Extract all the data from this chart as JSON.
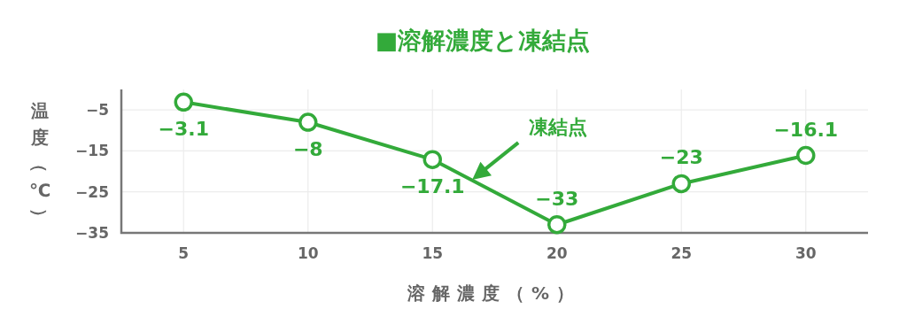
{
  "chart_data": {
    "type": "line",
    "title": "■溶解濃度と凍結点",
    "xlabel": "溶解濃度（%）",
    "ylabel": "温度（℃）",
    "x": [
      5,
      10,
      15,
      20,
      25,
      30
    ],
    "series": [
      {
        "color": "#33aa3a",
        "values": [
          -3.1,
          -8,
          -17.1,
          -33,
          -23,
          -16.1
        ]
      }
    ],
    "xlim": [
      2.5,
      32.5
    ],
    "xticks": [
      5,
      10,
      15,
      20,
      25,
      30
    ],
    "ylim": [
      -35,
      0
    ],
    "yticks": [
      -5,
      -15,
      -25,
      -35
    ],
    "annotations": [
      "凍結点"
    ],
    "data_labels": true,
    "grid": true,
    "marker": "circle",
    "line_style": "solid"
  }
}
